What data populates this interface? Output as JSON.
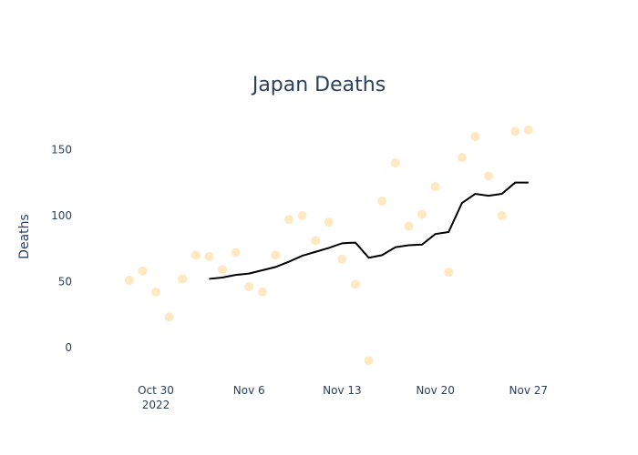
{
  "chart_data": {
    "type": "scatter",
    "title": "Japan Deaths",
    "xlabel": "",
    "ylabel": "Deaths",
    "x_start_date": "2022-10-27",
    "xlim": [
      "2022-10-25",
      "2022-11-29"
    ],
    "ylim": [
      -25,
      180
    ],
    "grid": false,
    "x_ticks": [
      {
        "date": "2022-10-30",
        "label": "Oct 30",
        "sublabel": "2022"
      },
      {
        "date": "2022-11-06",
        "label": "Nov 6",
        "sublabel": ""
      },
      {
        "date": "2022-11-13",
        "label": "Nov 13",
        "sublabel": ""
      },
      {
        "date": "2022-11-20",
        "label": "Nov 20",
        "sublabel": ""
      },
      {
        "date": "2022-11-27",
        "label": "Nov 27",
        "sublabel": ""
      }
    ],
    "y_ticks": [
      {
        "value": 0,
        "label": "0"
      },
      {
        "value": 50,
        "label": "50"
      },
      {
        "value": 100,
        "label": "100"
      },
      {
        "value": 150,
        "label": "150"
      }
    ],
    "series": [
      {
        "mode": "markers",
        "color": "#ffe8c2",
        "x": [
          "2022-10-28",
          "2022-10-29",
          "2022-10-30",
          "2022-10-31",
          "2022-11-01",
          "2022-11-02",
          "2022-11-03",
          "2022-11-04",
          "2022-11-05",
          "2022-11-06",
          "2022-11-07",
          "2022-11-08",
          "2022-11-09",
          "2022-11-10",
          "2022-11-11",
          "2022-11-12",
          "2022-11-13",
          "2022-11-14",
          "2022-11-15",
          "2022-11-16",
          "2022-11-17",
          "2022-11-18",
          "2022-11-19",
          "2022-11-20",
          "2022-11-21",
          "2022-11-22",
          "2022-11-23",
          "2022-11-24",
          "2022-11-25",
          "2022-11-26",
          "2022-11-27"
        ],
        "y": [
          51,
          58,
          42,
          23,
          52,
          70,
          69,
          59,
          72,
          46,
          42,
          70,
          97,
          100,
          81,
          95,
          67,
          48,
          -10,
          111,
          140,
          92,
          101,
          122,
          57,
          144,
          160,
          130,
          100,
          164,
          165
        ]
      },
      {
        "mode": "lines",
        "color": "#000000",
        "x": [
          "2022-11-03",
          "2022-11-04",
          "2022-11-05",
          "2022-11-06",
          "2022-11-07",
          "2022-11-08",
          "2022-11-09",
          "2022-11-10",
          "2022-11-11",
          "2022-11-12",
          "2022-11-13",
          "2022-11-14",
          "2022-11-15",
          "2022-11-16",
          "2022-11-17",
          "2022-11-18",
          "2022-11-19",
          "2022-11-20",
          "2022-11-21",
          "2022-11-22",
          "2022-11-23",
          "2022-11-24",
          "2022-11-25",
          "2022-11-26",
          "2022-11-27"
        ],
        "y": [
          52,
          53,
          55,
          56,
          58.5,
          61,
          65,
          69.5,
          72.5,
          75.5,
          79,
          79.5,
          68,
          70,
          76,
          77.5,
          78,
          86,
          87.5,
          109.5,
          116.5,
          115,
          116.5,
          125,
          125
        ]
      }
    ]
  }
}
